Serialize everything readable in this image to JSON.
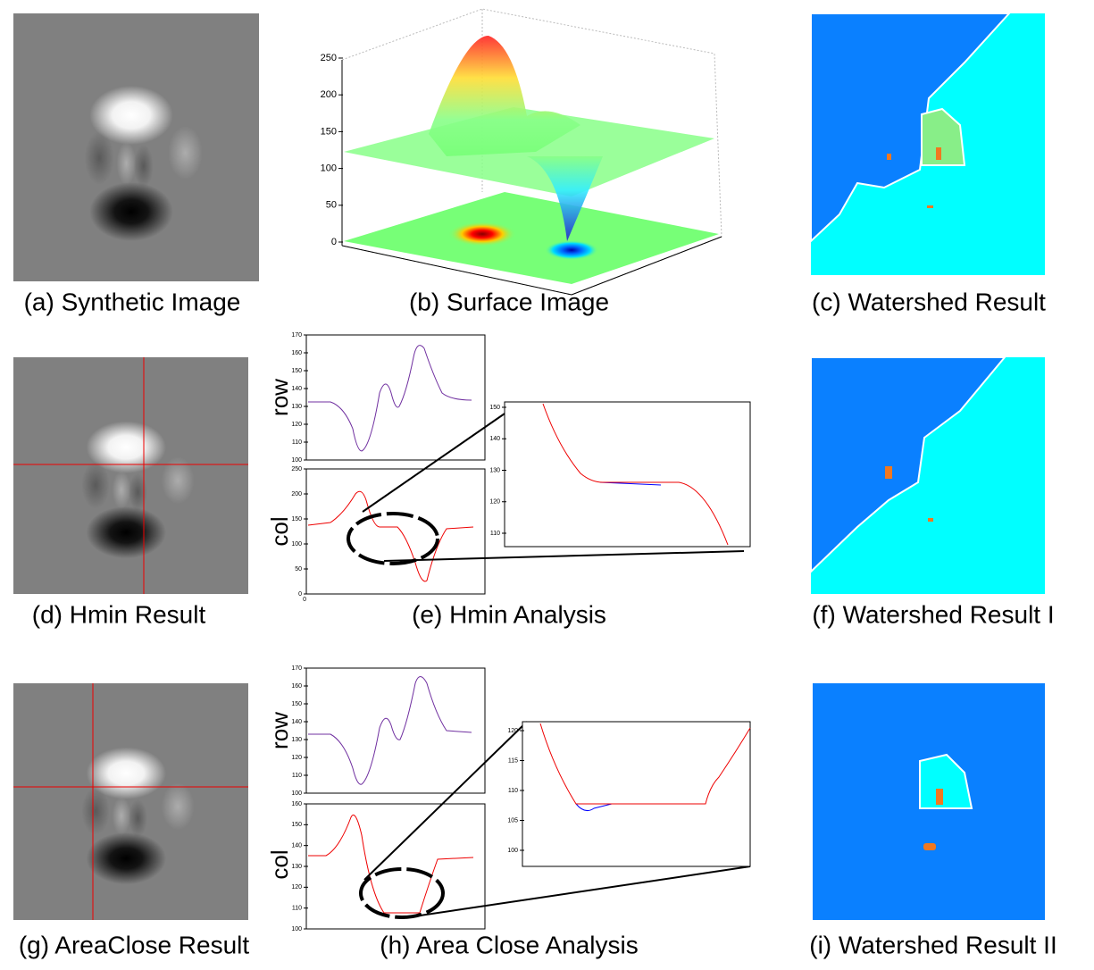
{
  "panels": [
    {
      "caption": "(a) Synthetic Image"
    },
    {
      "caption": "(b) Surface Image"
    },
    {
      "caption": "(c) Watershed Result"
    },
    {
      "caption": "(d) Hmin Result"
    },
    {
      "caption": "(e) Hmin Analysis"
    },
    {
      "caption": "(f) Watershed Result I"
    },
    {
      "caption": "(g) AreaClose Result"
    },
    {
      "caption": "(h) Area Close Analysis"
    },
    {
      "caption": "(i) Watershed Result II"
    }
  ],
  "surface": {
    "zticks": [
      0,
      50,
      100,
      150,
      200,
      250
    ]
  },
  "hmin": {
    "row": {
      "label": "row",
      "yticks": [
        100,
        110,
        120,
        130,
        140,
        150,
        160,
        170
      ]
    },
    "col": {
      "label": "col",
      "yticks": [
        0,
        50,
        100,
        150,
        200,
        250
      ],
      "xticks": [
        0
      ]
    },
    "zoom": {
      "yticks": [
        110,
        120,
        130,
        140,
        150
      ]
    }
  },
  "areaclose": {
    "row": {
      "label": "row",
      "yticks": [
        100,
        110,
        120,
        130,
        140,
        150,
        160,
        170
      ]
    },
    "col": {
      "label": "col",
      "yticks": [
        100,
        110,
        120,
        130,
        140,
        150,
        160
      ]
    },
    "zoom": {
      "yticks": [
        100,
        105,
        110,
        115,
        120
      ]
    }
  }
}
